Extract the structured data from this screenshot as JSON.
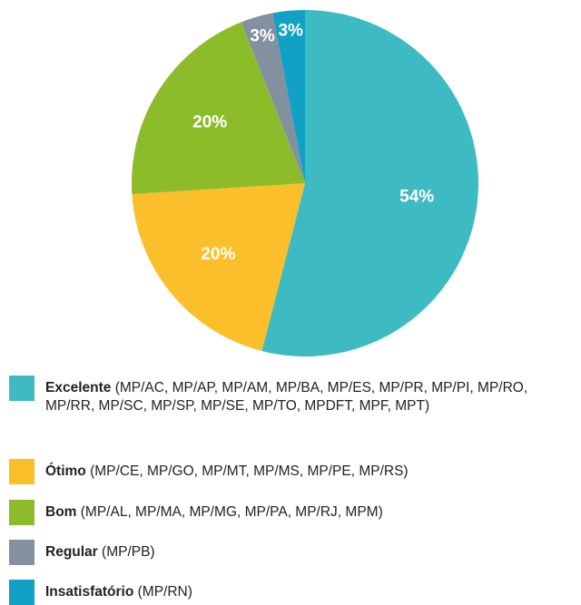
{
  "chart_data": {
    "type": "pie",
    "categories": [
      "Excelente",
      "Ótimo",
      "Bom",
      "Regular",
      "Insatisfatório"
    ],
    "details": [
      "(MP/AC, MP/AP, MP/AM, MP/BA, MP/ES, MP/PR, MP/PI, MP/RO, MP/RR, MP/SC, MP/SP, MP/SE, MP/TO, MPDFT, MPF, MPT)",
      "(MP/CE, MP/GO, MP/MT, MP/MS, MP/PE,  MP/RS)",
      "(MP/AL, MP/MA, MP/MG, MP/PA, MP/RJ, MPM)",
      "(MP/PB)",
      "(MP/RN)"
    ],
    "values": [
      54,
      20,
      20,
      3,
      3
    ],
    "value_labels": [
      "54%",
      "20%",
      "20%",
      "3%",
      "3%"
    ],
    "colors": [
      "#3dbac2",
      "#fbbf2b",
      "#8dbc2a",
      "#8390a0",
      "#11a1c5"
    ]
  }
}
